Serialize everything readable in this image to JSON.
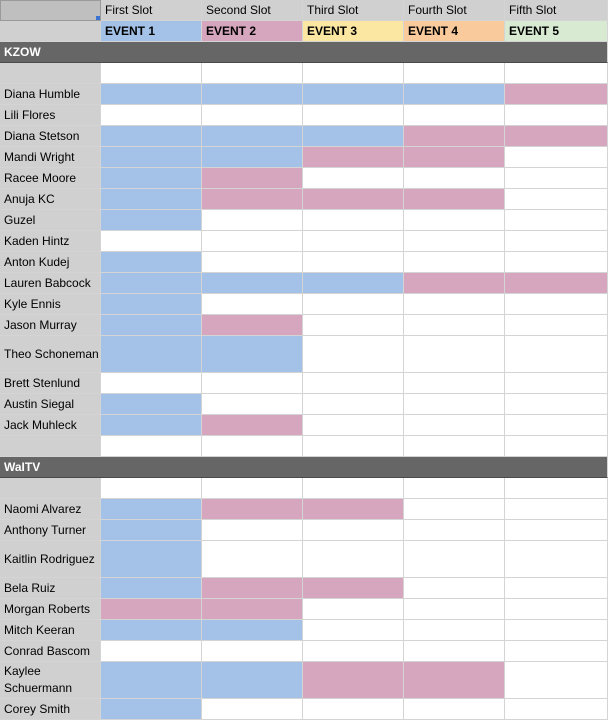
{
  "colors": {
    "blue": "#a4c2e7",
    "pink": "#d5a6bd",
    "event_colors": [
      "#a4c2e7",
      "#d5a6bd",
      "#fce7a2",
      "#f9cb9c",
      "#d8ead2"
    ]
  },
  "header": {
    "slots": [
      "First Slot",
      "Second Slot",
      "Third Slot",
      "Fourth Slot",
      "Fifth Slot"
    ],
    "events": [
      "EVENT 1",
      "EVENT 2",
      "EVENT 3",
      "EVENT 4",
      "EVENT 5"
    ]
  },
  "rows": [
    {
      "type": "section",
      "label": "KZOW"
    },
    {
      "type": "blank"
    },
    {
      "type": "person",
      "name": "Diana Humble",
      "cells": [
        "b",
        "b",
        "b",
        "b",
        "p"
      ]
    },
    {
      "type": "person",
      "name": "Lili Flores",
      "cells": [
        "",
        "",
        "",
        "",
        ""
      ]
    },
    {
      "type": "person",
      "name": "Diana Stetson",
      "cells": [
        "b",
        "b",
        "b",
        "p",
        "p"
      ]
    },
    {
      "type": "person",
      "name": "Mandi Wright",
      "cells": [
        "b",
        "b",
        "p",
        "p",
        ""
      ]
    },
    {
      "type": "person",
      "name": "Racee Moore",
      "cells": [
        "b",
        "p",
        "",
        "",
        ""
      ]
    },
    {
      "type": "person",
      "name": "Anuja KC",
      "cells": [
        "b",
        "p",
        "p",
        "p",
        ""
      ]
    },
    {
      "type": "person",
      "name": "Guzel",
      "cells": [
        "b",
        "",
        "",
        "",
        ""
      ]
    },
    {
      "type": "person",
      "name": "Kaden Hintz",
      "cells": [
        "",
        "",
        "",
        "",
        ""
      ]
    },
    {
      "type": "person",
      "name": "Anton Kudej",
      "cells": [
        "b",
        "",
        "",
        "",
        ""
      ]
    },
    {
      "type": "person",
      "name": "Lauren Babcock",
      "cells": [
        "b",
        "b",
        "b",
        "p",
        "p"
      ]
    },
    {
      "type": "person",
      "name": "Kyle Ennis",
      "cells": [
        "b",
        "",
        "",
        "",
        ""
      ]
    },
    {
      "type": "person",
      "name": "Jason Murray",
      "cells": [
        "b",
        "p",
        "",
        "",
        ""
      ]
    },
    {
      "type": "person",
      "name": "Theo Schoneman",
      "cells": [
        "b",
        "b",
        "",
        "",
        ""
      ],
      "tall": true
    },
    {
      "type": "person",
      "name": "Brett Stenlund",
      "cells": [
        "",
        "",
        "",
        "",
        ""
      ]
    },
    {
      "type": "person",
      "name": "Austin Siegal",
      "cells": [
        "b",
        "",
        "",
        "",
        ""
      ]
    },
    {
      "type": "person",
      "name": "Jack Muhleck",
      "cells": [
        "b",
        "p",
        "",
        "",
        ""
      ]
    },
    {
      "type": "blank"
    },
    {
      "type": "section",
      "label": "WaITV"
    },
    {
      "type": "blank"
    },
    {
      "type": "person",
      "name": "Naomi Alvarez",
      "cells": [
        "b",
        "p",
        "p",
        "",
        ""
      ]
    },
    {
      "type": "person",
      "name": "Anthony Turner",
      "cells": [
        "b",
        "",
        "",
        "",
        ""
      ]
    },
    {
      "type": "person",
      "name": "Kaitlin Rodriguez",
      "cells": [
        "b",
        "",
        "",
        "",
        ""
      ],
      "tall": true
    },
    {
      "type": "person",
      "name": "Bela Ruiz",
      "cells": [
        "b",
        "p",
        "p",
        "",
        ""
      ]
    },
    {
      "type": "person",
      "name": "Morgan Roberts",
      "cells": [
        "p",
        "p",
        "",
        "",
        ""
      ]
    },
    {
      "type": "person",
      "name": "Mitch Keeran",
      "cells": [
        "b",
        "b",
        "",
        "",
        ""
      ]
    },
    {
      "type": "person",
      "name": "Conrad Bascom",
      "cells": [
        "",
        "",
        "",
        "",
        ""
      ]
    },
    {
      "type": "person",
      "name": "Kaylee Schuermann",
      "cells": [
        "b",
        "b",
        "p",
        "p",
        ""
      ],
      "tall": true
    },
    {
      "type": "person",
      "name": "Corey Smith",
      "cells": [
        "b",
        "",
        "",
        "",
        ""
      ]
    }
  ]
}
